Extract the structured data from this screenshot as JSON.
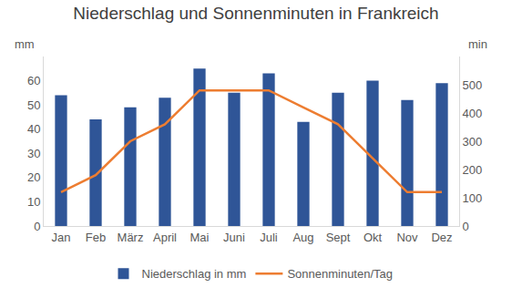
{
  "chart_data": {
    "type": "bar",
    "title": "Niederschlag und Sonnenminuten in Frankreich",
    "ylabel": "mm",
    "y2label": "min",
    "categories": [
      "Jan",
      "Feb",
      "März",
      "April",
      "Mai",
      "Juni",
      "Juli",
      "Aug",
      "Sept",
      "Okt",
      "Nov",
      "Dez"
    ],
    "series": [
      {
        "name": "Niederschlag in mm",
        "type": "bar",
        "color": "#2f5597",
        "values": [
          54,
          44,
          49,
          53,
          65,
          55,
          63,
          43,
          55,
          60,
          52,
          59
        ]
      },
      {
        "name": "Sonnenminuten/Tag",
        "type": "line",
        "axis": "y2",
        "color": "#ed7d31",
        "values": [
          120,
          180,
          300,
          360,
          480,
          480,
          480,
          420,
          360,
          240,
          120,
          120
        ]
      }
    ],
    "ylim": [
      0,
      70
    ],
    "yticks": [
      0,
      10,
      20,
      30,
      40,
      50,
      60
    ],
    "y2lim": [
      0,
      600
    ],
    "y2ticks": [
      0,
      100,
      200,
      300,
      400,
      500
    ],
    "grid": false,
    "legend": "bottom"
  }
}
